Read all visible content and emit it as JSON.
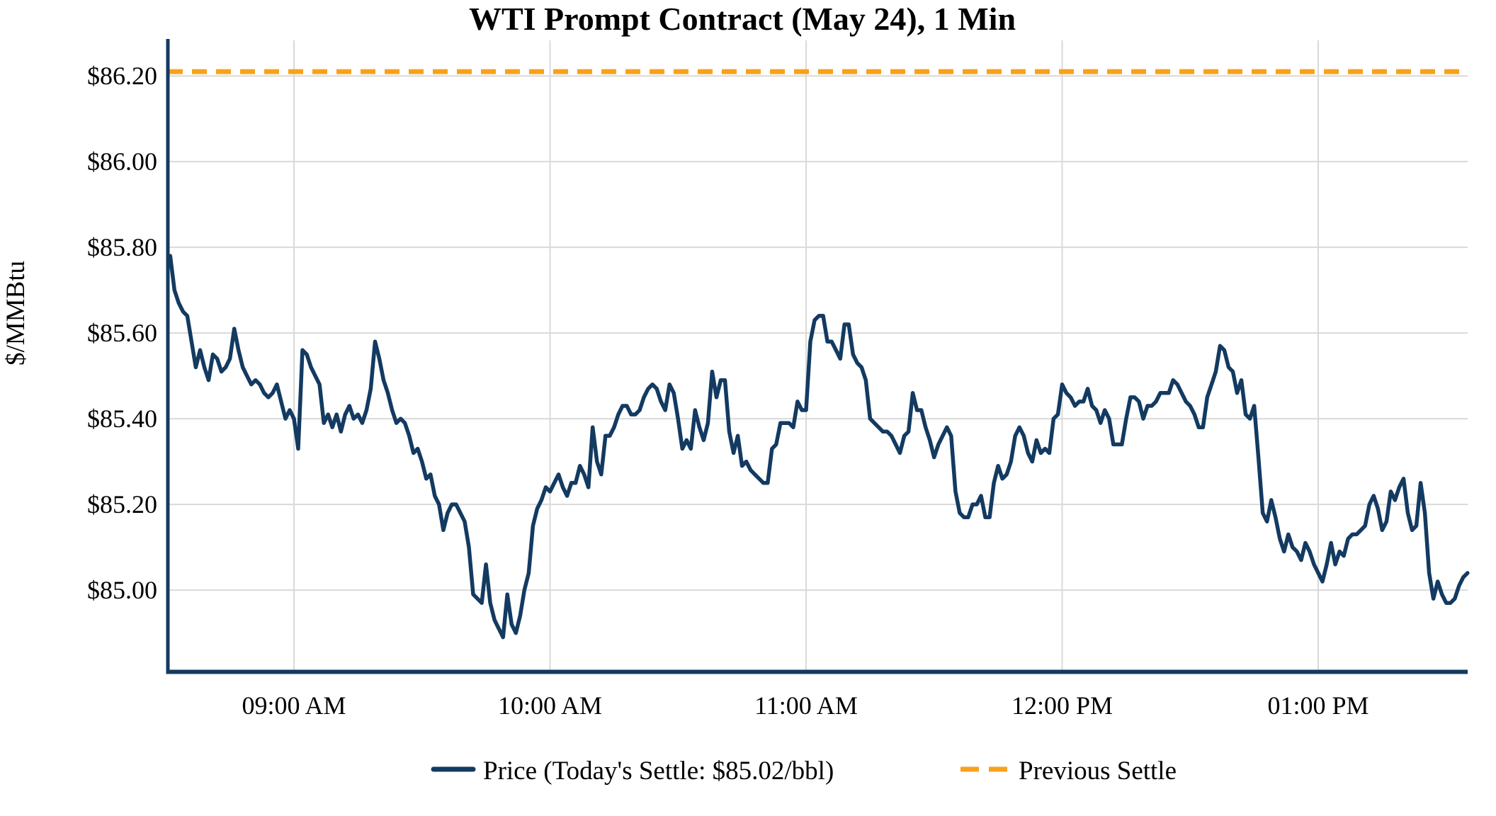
{
  "title": "WTI Prompt Contract (May 24), 1 Min",
  "y_axis_label": "$/MMBtu",
  "legend": {
    "price_label": "Price (Today's Settle: $85.02/bbl)",
    "previous_settle_label": "Previous Settle"
  },
  "colors": {
    "price_line": "#133a61",
    "previous_settle_line": "#f7a21b",
    "grid": "#d9d9d9",
    "axis_spine": "#133a61",
    "text": "#000000",
    "background": "#ffffff"
  },
  "y_axis": {
    "ticks": [
      {
        "label": "$86.20",
        "value": 86.2
      },
      {
        "label": "$86.00",
        "value": 86.0
      },
      {
        "label": "$85.80",
        "value": 85.8
      },
      {
        "label": "$85.60",
        "value": 85.6
      },
      {
        "label": "$85.40",
        "value": 85.4
      },
      {
        "label": "$85.20",
        "value": 85.2
      },
      {
        "label": "$85.00",
        "value": 85.0
      }
    ]
  },
  "x_axis": {
    "ticks": [
      {
        "label": "09:00 AM",
        "time": "09:00"
      },
      {
        "label": "10:00 AM",
        "time": "10:00"
      },
      {
        "label": "11:00 AM",
        "time": "11:00"
      },
      {
        "label": "12:00 PM",
        "time": "12:00"
      },
      {
        "label": "01:00 PM",
        "time": "13:00"
      }
    ]
  },
  "chart_data": {
    "type": "line",
    "title": "WTI Prompt Contract (May 24), 1 Min",
    "xlabel": "",
    "ylabel": "$/MMBtu",
    "ylim": [
      84.81,
      86.283
    ],
    "x_range": [
      "08:30",
      "13:36"
    ],
    "grid": true,
    "legend_position": "bottom",
    "previous_settle": 86.21,
    "todays_settle": 85.02,
    "x_start": "08:31",
    "x_step_minutes": 1,
    "series": [
      {
        "name": "Price",
        "values": [
          85.78,
          85.7,
          85.67,
          85.65,
          85.64,
          85.58,
          85.52,
          85.56,
          85.52,
          85.49,
          85.55,
          85.54,
          85.51,
          85.52,
          85.54,
          85.61,
          85.56,
          85.52,
          85.5,
          85.48,
          85.49,
          85.48,
          85.46,
          85.45,
          85.46,
          85.48,
          85.44,
          85.4,
          85.42,
          85.4,
          85.33,
          85.56,
          85.55,
          85.52,
          85.5,
          85.48,
          85.39,
          85.41,
          85.38,
          85.41,
          85.37,
          85.41,
          85.43,
          85.4,
          85.41,
          85.39,
          85.42,
          85.47,
          85.58,
          85.54,
          85.49,
          85.46,
          85.42,
          85.39,
          85.4,
          85.39,
          85.36,
          85.32,
          85.33,
          85.3,
          85.26,
          85.27,
          85.22,
          85.2,
          85.14,
          85.18,
          85.2,
          85.2,
          85.18,
          85.16,
          85.1,
          84.99,
          84.98,
          84.97,
          85.06,
          84.97,
          84.93,
          84.91,
          84.89,
          84.99,
          84.92,
          84.9,
          84.94,
          85.0,
          85.04,
          85.15,
          85.19,
          85.21,
          85.24,
          85.23,
          85.25,
          85.27,
          85.24,
          85.22,
          85.25,
          85.25,
          85.29,
          85.27,
          85.24,
          85.38,
          85.3,
          85.27,
          85.36,
          85.36,
          85.38,
          85.41,
          85.43,
          85.43,
          85.41,
          85.41,
          85.42,
          85.45,
          85.47,
          85.48,
          85.47,
          85.44,
          85.42,
          85.48,
          85.46,
          85.4,
          85.33,
          85.35,
          85.33,
          85.42,
          85.38,
          85.35,
          85.39,
          85.51,
          85.45,
          85.49,
          85.49,
          85.37,
          85.32,
          85.36,
          85.29,
          85.3,
          85.28,
          85.27,
          85.26,
          85.25,
          85.25,
          85.33,
          85.34,
          85.39,
          85.39,
          85.39,
          85.38,
          85.44,
          85.42,
          85.42,
          85.58,
          85.63,
          85.64,
          85.64,
          85.58,
          85.58,
          85.56,
          85.54,
          85.62,
          85.62,
          85.55,
          85.53,
          85.52,
          85.49,
          85.4,
          85.39,
          85.38,
          85.37,
          85.37,
          85.36,
          85.34,
          85.32,
          85.36,
          85.37,
          85.46,
          85.42,
          85.42,
          85.38,
          85.35,
          85.31,
          85.34,
          85.36,
          85.38,
          85.36,
          85.23,
          85.18,
          85.17,
          85.17,
          85.2,
          85.2,
          85.22,
          85.17,
          85.17,
          85.25,
          85.29,
          85.26,
          85.27,
          85.3,
          85.36,
          85.38,
          85.36,
          85.32,
          85.3,
          85.35,
          85.32,
          85.33,
          85.32,
          85.4,
          85.41,
          85.48,
          85.46,
          85.45,
          85.43,
          85.44,
          85.44,
          85.47,
          85.43,
          85.42,
          85.39,
          85.42,
          85.4,
          85.34,
          85.34,
          85.34,
          85.4,
          85.45,
          85.45,
          85.44,
          85.4,
          85.43,
          85.43,
          85.44,
          85.46,
          85.46,
          85.46,
          85.49,
          85.48,
          85.46,
          85.44,
          85.43,
          85.41,
          85.38,
          85.38,
          85.45,
          85.48,
          85.51,
          85.57,
          85.56,
          85.52,
          85.51,
          85.46,
          85.49,
          85.41,
          85.4,
          85.43,
          85.31,
          85.18,
          85.16,
          85.21,
          85.17,
          85.12,
          85.09,
          85.13,
          85.1,
          85.09,
          85.07,
          85.11,
          85.09,
          85.06,
          85.04,
          85.02,
          85.06,
          85.11,
          85.06,
          85.09,
          85.08,
          85.12,
          85.13,
          85.13,
          85.14,
          85.15,
          85.2,
          85.22,
          85.19,
          85.14,
          85.16,
          85.23,
          85.21,
          85.24,
          85.26,
          85.18,
          85.14,
          85.15,
          85.25,
          85.18,
          85.04,
          84.98,
          85.02,
          84.99,
          84.97,
          84.97,
          84.98,
          85.01,
          85.03,
          85.04
        ]
      }
    ]
  }
}
